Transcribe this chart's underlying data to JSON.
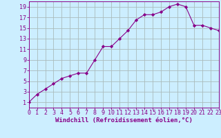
{
  "x": [
    0,
    1,
    2,
    3,
    4,
    5,
    6,
    7,
    8,
    9,
    10,
    11,
    12,
    13,
    14,
    15,
    16,
    17,
    18,
    19,
    20,
    21,
    22,
    23
  ],
  "y": [
    1,
    2.5,
    3.5,
    4.5,
    5.5,
    6.0,
    6.5,
    6.5,
    9.0,
    11.5,
    11.5,
    13.0,
    14.5,
    16.5,
    17.5,
    17.5,
    18.0,
    19.0,
    19.5,
    19.0,
    15.5,
    15.5,
    15.0,
    14.5
  ],
  "line_color": "#880088",
  "marker": "D",
  "marker_size": 2.2,
  "background_color": "#cceeff",
  "grid_color": "#aabbbb",
  "xlabel": "Windchill (Refroidissement éolien,°C)",
  "xlim": [
    0,
    23
  ],
  "ylim": [
    0,
    20
  ],
  "xticks": [
    0,
    1,
    2,
    3,
    4,
    5,
    6,
    7,
    8,
    9,
    10,
    11,
    12,
    13,
    14,
    15,
    16,
    17,
    18,
    19,
    20,
    21,
    22,
    23
  ],
  "yticks": [
    1,
    3,
    5,
    7,
    9,
    11,
    13,
    15,
    17,
    19
  ],
  "tick_color": "#880088",
  "label_color": "#880088",
  "xlabel_fontsize": 6.5,
  "tick_fontsize": 6.0
}
